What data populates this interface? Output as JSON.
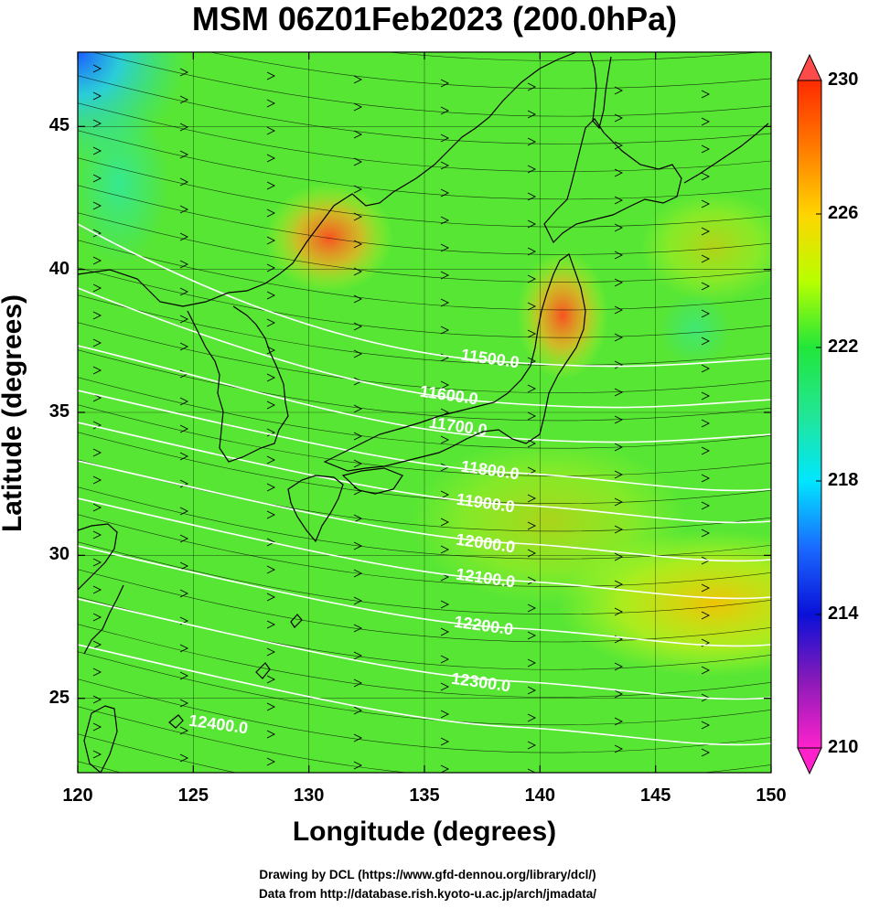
{
  "title": "MSM 06Z01Feb2023 (200.0hPa)",
  "x_axis": {
    "label": "Longitude (degrees)",
    "ticks": [
      "120",
      "125",
      "130",
      "135",
      "140",
      "145",
      "150"
    ],
    "range": [
      120,
      150
    ]
  },
  "y_axis": {
    "label": "Latitude  (degrees)",
    "ticks": [
      "25",
      "30",
      "35",
      "40",
      "45"
    ],
    "range": [
      22.4,
      47.6
    ]
  },
  "colorbar": {
    "ticks": [
      "230",
      "226",
      "222",
      "218",
      "214",
      "210"
    ],
    "range": [
      210,
      230
    ]
  },
  "contours": [
    {
      "label": "11500.0",
      "value": 11500
    },
    {
      "label": "11600.0",
      "value": 11600
    },
    {
      "label": "11700.0",
      "value": 11700
    },
    {
      "label": "11800.0",
      "value": 11800
    },
    {
      "label": "11900.0",
      "value": 11900
    },
    {
      "label": "12000.0",
      "value": 12000
    },
    {
      "label": "12100.0",
      "value": 12100
    },
    {
      "label": "12200.0",
      "value": 12200
    },
    {
      "label": "12300.0",
      "value": 12300
    },
    {
      "label": "12400.0",
      "value": 12400
    }
  ],
  "credits": {
    "line1": "Drawing by DCL (https://www.gfd-dennou.org/library/dcl/)",
    "line2": "Data from http://database.rish.kyoto-u.ac.jp/arch/jmadata/"
  },
  "colors": {
    "background_field": "#22dd33",
    "warm_patch": "#ff5522",
    "cold_patch": "#2255ff",
    "contour": "#ffffff",
    "coast": "#000000"
  }
}
